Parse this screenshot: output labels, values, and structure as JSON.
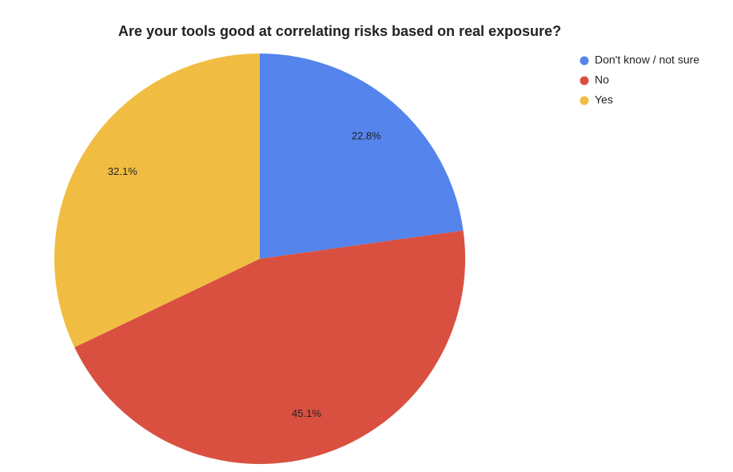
{
  "chart_data": {
    "type": "pie",
    "title": "Are your tools good at correlating risks based on real exposure?",
    "categories": [
      "Don't know / not sure",
      "No",
      "Yes"
    ],
    "values": [
      22.8,
      45.1,
      32.1
    ],
    "value_labels": [
      "22.8%",
      "45.1%",
      "32.1%"
    ],
    "colors": [
      "#5484ec",
      "#d95040",
      "#f0bd42"
    ],
    "legend": "right"
  }
}
